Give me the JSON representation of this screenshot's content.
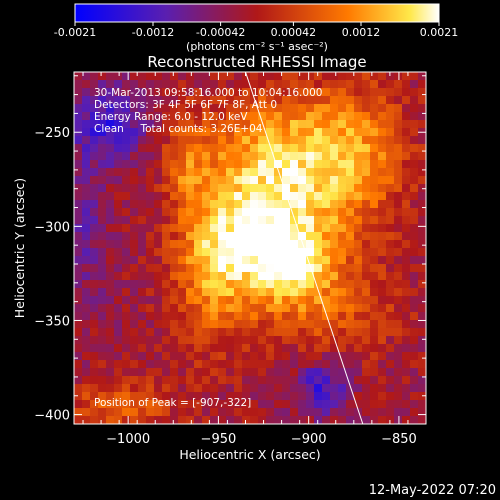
{
  "colorbar": {
    "tick_labels": [
      "-0.0021",
      "-0.0012",
      "-0.00042",
      "0.00042",
      "0.0012",
      "0.0021"
    ],
    "tick_values": [
      -0.0021,
      -0.0012,
      -0.00042,
      0.00042,
      0.0012,
      0.0021
    ],
    "range": [
      -0.0021,
      0.0021
    ],
    "unit_label": "(photons cm⁻² s⁻¹ asec⁻²)",
    "colormap": "blue-purple-red-yellow-white"
  },
  "chart_data": {
    "type": "heatmap",
    "title": "Reconstructed RHESSI Image",
    "xlabel": "Heliocentric X (arcsec)",
    "ylabel": "Heliocentric Y (arcsec)",
    "xlim": [
      -1030,
      -835
    ],
    "ylim": [
      -405,
      -218
    ],
    "x_ticks": [
      -1000,
      -950,
      -900,
      -850
    ],
    "x_tick_labels": [
      "−1000",
      "−950",
      "−900",
      "−850"
    ],
    "y_ticks": [
      -250,
      -300,
      -350,
      -400
    ],
    "y_tick_labels": [
      "−250",
      "−300",
      "−350",
      "−400"
    ],
    "annotations": [
      "30-Mar-2013 09:58:16.000 to 10:04:16.000",
      "Detectors: 3F 4F 5F 6F 7F 8F, Att 0",
      "Energy Range: 6.0 - 12.0 keV",
      "Clean     Total counts: 3.26E+04"
    ],
    "peak_label": "Position of Peak = [-907,-322]",
    "peak": [
      -907,
      -322
    ],
    "limb_line": {
      "x": [
        -935,
        -870
      ],
      "y": [
        -218,
        -405
      ]
    },
    "background_level": -0.0002,
    "blobs": [
      {
        "x": -922,
        "y": -305,
        "sx": 26,
        "sy": 28,
        "amp": 0.0023
      },
      {
        "x": -907,
        "y": -322,
        "sx": 12,
        "sy": 12,
        "amp": 0.0009
      },
      {
        "x": -915,
        "y": -255,
        "sx": 30,
        "sy": 20,
        "amp": 0.0012
      },
      {
        "x": -873,
        "y": -265,
        "sx": 20,
        "sy": 28,
        "amp": 0.0011
      },
      {
        "x": -955,
        "y": -322,
        "sx": 14,
        "sy": 30,
        "amp": 0.001
      },
      {
        "x": -878,
        "y": -345,
        "sx": 22,
        "sy": 18,
        "amp": 0.0006
      },
      {
        "x": -1005,
        "y": -395,
        "sx": 22,
        "sy": 10,
        "amp": 0.0009
      },
      {
        "x": -1010,
        "y": -245,
        "sx": 14,
        "sy": 14,
        "amp": -0.0012
      },
      {
        "x": -1025,
        "y": -300,
        "sx": 10,
        "sy": 30,
        "amp": -0.0006
      },
      {
        "x": -893,
        "y": -385,
        "sx": 10,
        "sy": 10,
        "amp": -0.0012
      },
      {
        "x": -968,
        "y": -265,
        "sx": 8,
        "sy": 16,
        "amp": 0.0008
      }
    ]
  },
  "footer": {
    "timestamp": "12-May-2022 07:20"
  }
}
